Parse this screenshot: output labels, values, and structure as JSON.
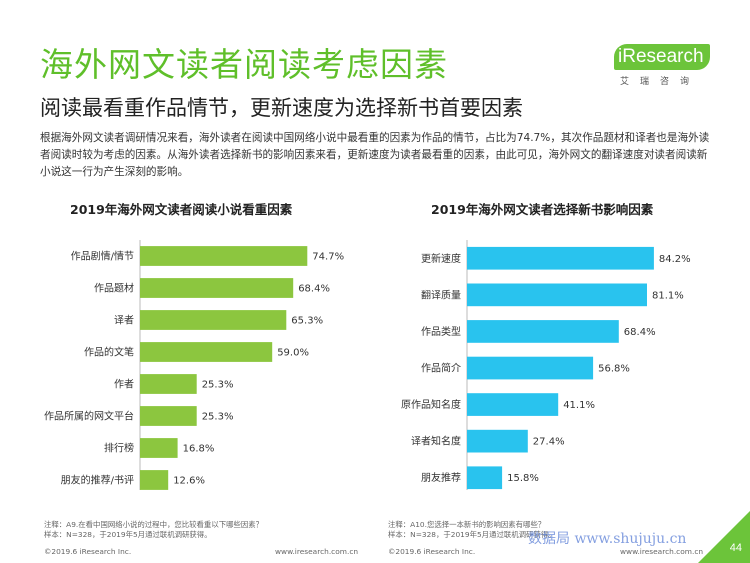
{
  "header": {
    "title": "海外网文读者阅读考虑因素",
    "subtitle": "阅读最看重作品情节，更新速度为选择新书首要因素",
    "logo_text": "iResearch",
    "logo_sub": "艾瑞咨询"
  },
  "description": "根据海外网文读者调研情况来看，海外读者在阅读中国网络小说中最看重的因素为作品的情节，占比为74.7%，其次作品题材和译者也是海外读者阅读时较为考虑的因素。从海外读者选择新书的影响因素来看，更新速度为读者最看重的因素，由此可见，海外网文的翻译速度对读者阅读新小说这一行为产生深刻的影响。",
  "colors": {
    "green": "#8cc63f",
    "blue": "#29c3ee",
    "title_green": "#5fbf2a"
  },
  "chart_data": [
    {
      "type": "bar",
      "orientation": "horizontal",
      "title": "2019年海外网文读者阅读小说看重因素",
      "categories": [
        "作品剧情/情节",
        "作品题材",
        "译者",
        "作品的文笔",
        "作者",
        "作品所属的网文平台",
        "排行榜",
        "朋友的推荐/书评"
      ],
      "values": [
        74.7,
        68.4,
        65.3,
        59.0,
        25.3,
        25.3,
        16.8,
        12.6
      ],
      "labels": [
        "74.7%",
        "68.4%",
        "65.3%",
        "59.0%",
        "25.3%",
        "25.3%",
        "16.8%",
        "12.6%"
      ],
      "unit": "%",
      "color": "#8cc63f",
      "xlim": [
        0,
        100
      ]
    },
    {
      "type": "bar",
      "orientation": "horizontal",
      "title": "2019年海外网文读者选择新书影响因素",
      "categories": [
        "更新速度",
        "翻译质量",
        "作品类型",
        "作品简介",
        "原作品知名度",
        "译者知名度",
        "朋友推荐"
      ],
      "values": [
        84.2,
        81.1,
        68.4,
        56.8,
        41.1,
        27.4,
        15.8
      ],
      "labels": [
        "84.2%",
        "81.1%",
        "68.4%",
        "56.8%",
        "41.1%",
        "27.4%",
        "15.8%"
      ],
      "unit": "%",
      "color": "#29c3ee",
      "xlim": [
        0,
        100
      ]
    }
  ],
  "notes": {
    "left_line1": "注释：A9.在看中国网络小说的过程中，您比较看重以下哪些因素？",
    "left_line2": "样本：N=328，于2019年5月通过联机调研获得。",
    "right_line1": "注释：A10.您选择一本新书的影响因素有哪些？",
    "right_line2": "样本：N=328，于2019年5月通过联机调研获得。"
  },
  "footer": {
    "copyright": "©2019.6 iResearch Inc.",
    "url": "www.iresearch.com.cn",
    "watermark": "数据局 www.shujuju.cn",
    "page": "44"
  }
}
